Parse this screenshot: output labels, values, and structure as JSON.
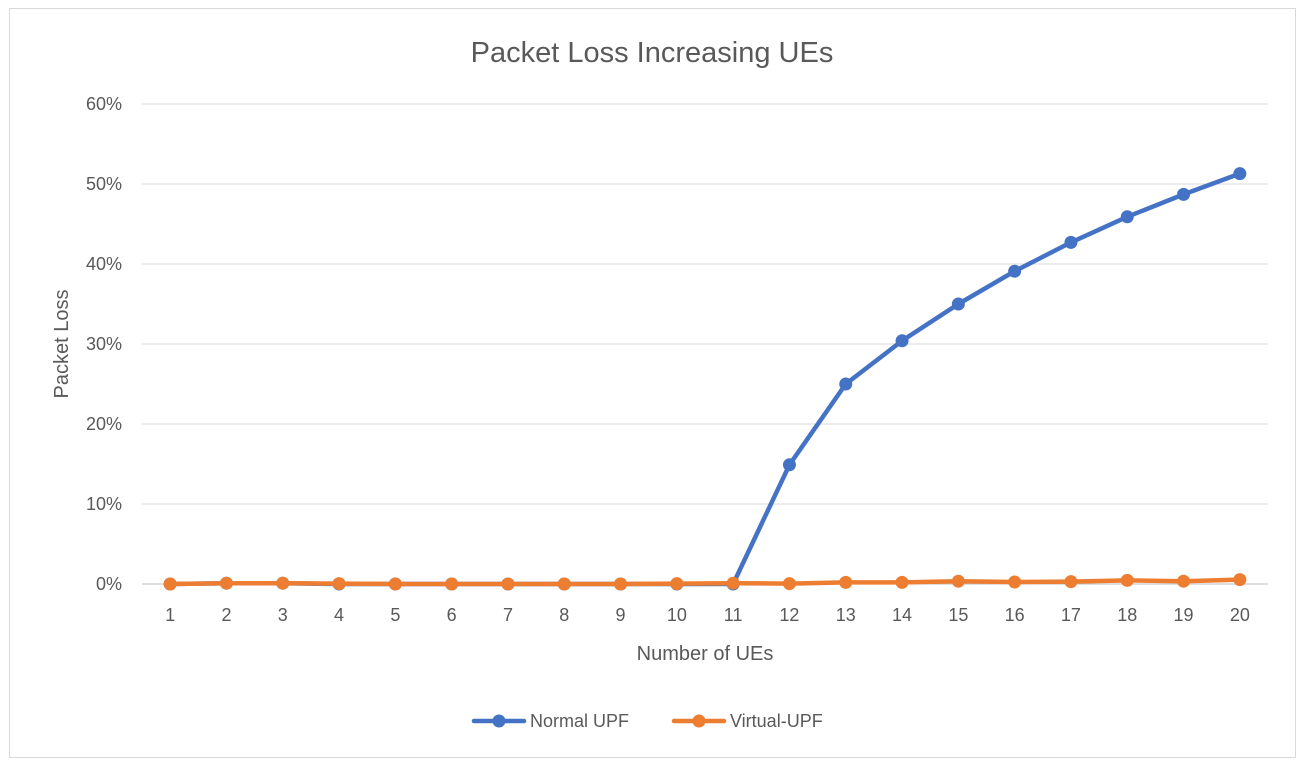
{
  "chart_data": {
    "type": "line",
    "title": "Packet Loss Increasing UEs",
    "xlabel": "Number of UEs",
    "ylabel": "Packet Loss",
    "categories": [
      "1",
      "2",
      "3",
      "4",
      "5",
      "6",
      "7",
      "8",
      "9",
      "10",
      "11",
      "12",
      "13",
      "14",
      "15",
      "16",
      "17",
      "18",
      "19",
      "20"
    ],
    "ylim": [
      0,
      60
    ],
    "yticks": [
      "0%",
      "10%",
      "20%",
      "30%",
      "40%",
      "50%",
      "60%"
    ],
    "grid": true,
    "legend_position": "bottom",
    "series": [
      {
        "name": "Normal UPF",
        "color": "#4472c4",
        "values": [
          0,
          0.1,
          0.1,
          0,
          0,
          0,
          0,
          0,
          0,
          0,
          0,
          14.9,
          25,
          30.4,
          35,
          39.1,
          42.7,
          45.9,
          48.7,
          51.3
        ]
      },
      {
        "name": "Virtual-UPF",
        "color": "#ed7d31",
        "values": [
          0,
          0.1,
          0.1,
          0.05,
          0,
          0,
          0,
          0,
          0,
          0.05,
          0.1,
          0.05,
          0.2,
          0.2,
          0.35,
          0.25,
          0.3,
          0.45,
          0.35,
          0.55
        ]
      }
    ]
  }
}
